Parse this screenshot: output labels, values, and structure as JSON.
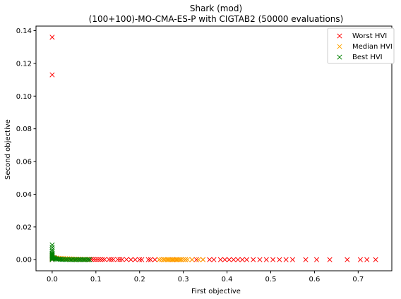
{
  "chart_data": {
    "type": "scatter",
    "title_line1": "Shark (mod)",
    "title_line2": "(100+100)-MO-CMA-ES-P with CIGTAB2 (50000 evaluations)",
    "xlabel": "First objective",
    "ylabel": "Second objective",
    "xlim": [
      -0.037,
      0.777
    ],
    "ylim": [
      -0.0068,
      0.1428
    ],
    "xticks": [
      {
        "value": 0.0,
        "label": "0.0"
      },
      {
        "value": 0.1,
        "label": "0.1"
      },
      {
        "value": 0.2,
        "label": "0.2"
      },
      {
        "value": 0.3,
        "label": "0.3"
      },
      {
        "value": 0.4,
        "label": "0.4"
      },
      {
        "value": 0.5,
        "label": "0.5"
      },
      {
        "value": 0.6,
        "label": "0.6"
      },
      {
        "value": 0.7,
        "label": "0.7"
      }
    ],
    "yticks": [
      {
        "value": 0.0,
        "label": "0.00"
      },
      {
        "value": 0.02,
        "label": "0.02"
      },
      {
        "value": 0.04,
        "label": "0.04"
      },
      {
        "value": 0.06,
        "label": "0.06"
      },
      {
        "value": 0.08,
        "label": "0.08"
      },
      {
        "value": 0.1,
        "label": "0.10"
      },
      {
        "value": 0.12,
        "label": "0.12"
      },
      {
        "value": 0.14,
        "label": "0.14"
      }
    ],
    "grid": false,
    "legend_position": "top-right",
    "marker": "x",
    "series": [
      {
        "name": "Worst HVI",
        "color": "#ff0000",
        "x": [
          0.0,
          0.0,
          0.0,
          0.0,
          0.0,
          0.0,
          0.005,
          0.01,
          0.015,
          0.02,
          0.025,
          0.03,
          0.035,
          0.04,
          0.045,
          0.05,
          0.055,
          0.06,
          0.065,
          0.07,
          0.075,
          0.08,
          0.085,
          0.09,
          0.095,
          0.1,
          0.105,
          0.11,
          0.115,
          0.12,
          0.13,
          0.135,
          0.14,
          0.15,
          0.155,
          0.16,
          0.17,
          0.18,
          0.19,
          0.2,
          0.205,
          0.22,
          0.225,
          0.235,
          0.245,
          0.255,
          0.265,
          0.275,
          0.285,
          0.295,
          0.305,
          0.32,
          0.33,
          0.345,
          0.36,
          0.37,
          0.385,
          0.395,
          0.405,
          0.415,
          0.425,
          0.435,
          0.445,
          0.46,
          0.475,
          0.49,
          0.505,
          0.52,
          0.535,
          0.55,
          0.58,
          0.605,
          0.635,
          0.675,
          0.705,
          0.72,
          0.74
        ],
        "y": [
          0.136,
          0.113,
          0.002,
          0.001,
          0.0005,
          0.0,
          0.0012,
          0.001,
          0.0008,
          0.0007,
          0.0006,
          0.0005,
          0.0005,
          0.0004,
          0.0004,
          0.0003,
          0.0003,
          0.0003,
          0.0003,
          0.0002,
          0.0002,
          0.0002,
          0.0002,
          0.0002,
          0.0002,
          0.0001,
          0.0001,
          0.0001,
          0.0001,
          0.0001,
          0.0001,
          0.0001,
          0.0001,
          0.0001,
          0.0001,
          0.0001,
          0.0001,
          0.0,
          0.0,
          0.0,
          0.0,
          0.0,
          0.0,
          0.0,
          0.0,
          0.0,
          0.0,
          0.0,
          0.0,
          0.0,
          0.0,
          0.0,
          0.0,
          0.0,
          0.0,
          0.0,
          0.0,
          0.0,
          0.0,
          0.0,
          0.0,
          0.0,
          0.0,
          0.0,
          0.0,
          0.0,
          0.0,
          0.0,
          0.0,
          0.0,
          0.0,
          0.0,
          0.0,
          0.0,
          0.0,
          0.0,
          0.0
        ]
      },
      {
        "name": "Median HVI",
        "color": "#ffa500",
        "x": [
          0.0,
          0.0,
          0.003,
          0.006,
          0.01,
          0.015,
          0.02,
          0.025,
          0.03,
          0.035,
          0.04,
          0.045,
          0.05,
          0.055,
          0.06,
          0.065,
          0.07,
          0.075,
          0.08,
          0.245,
          0.25,
          0.255,
          0.258,
          0.262,
          0.265,
          0.268,
          0.271,
          0.274,
          0.277,
          0.28,
          0.283,
          0.286,
          0.289,
          0.292,
          0.295,
          0.3,
          0.305,
          0.31,
          0.32,
          0.335,
          0.345
        ],
        "y": [
          0.0015,
          0.001,
          0.0012,
          0.0011,
          0.001,
          0.0009,
          0.0008,
          0.0007,
          0.0006,
          0.0005,
          0.0005,
          0.0004,
          0.0004,
          0.0003,
          0.0003,
          0.0003,
          0.0002,
          0.0002,
          0.0002,
          0.0,
          0.0,
          0.0,
          0.0,
          0.0,
          0.0,
          0.0,
          0.0,
          0.0,
          0.0,
          0.0,
          0.0,
          0.0,
          0.0,
          0.0,
          0.0,
          0.0,
          0.0,
          0.0,
          0.0,
          0.0,
          0.0
        ]
      },
      {
        "name": "Best HVI",
        "color": "#008000",
        "x": [
          0.0,
          0.0,
          0.0,
          0.0,
          0.0,
          0.0,
          0.0,
          0.0,
          0.0,
          0.0,
          0.0,
          0.0,
          0.0,
          0.002,
          0.004,
          0.006,
          0.008,
          0.01,
          0.012,
          0.015,
          0.018,
          0.02,
          0.023,
          0.026,
          0.03,
          0.033,
          0.036,
          0.04,
          0.043,
          0.046,
          0.05,
          0.053,
          0.056,
          0.06,
          0.063,
          0.066,
          0.07,
          0.073,
          0.076,
          0.08,
          0.083,
          0.086
        ],
        "y": [
          0.009,
          0.0075,
          0.006,
          0.005,
          0.004,
          0.0035,
          0.003,
          0.0025,
          0.002,
          0.0015,
          0.001,
          0.0005,
          0.0,
          0.0012,
          0.001,
          0.0008,
          0.0006,
          0.0005,
          0.0004,
          0.0003,
          0.0003,
          0.0002,
          0.0002,
          0.0002,
          0.0001,
          0.0001,
          0.0001,
          0.0001,
          0.0,
          0.0,
          0.0,
          0.0,
          0.0,
          0.0,
          0.0,
          0.0,
          0.0,
          0.0,
          0.0,
          0.0,
          0.0,
          0.0
        ]
      }
    ]
  }
}
